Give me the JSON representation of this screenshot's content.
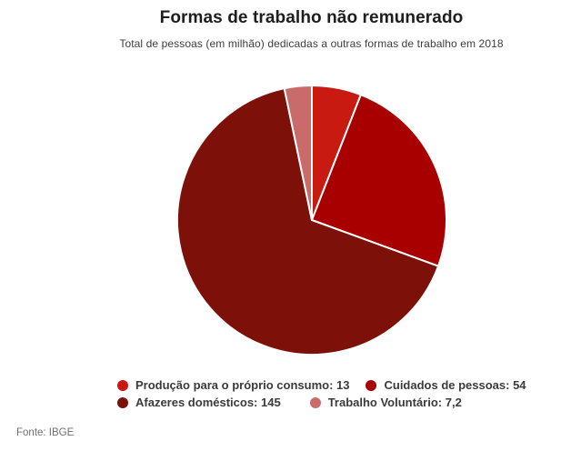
{
  "header": {
    "title": "Formas de trabalho não remunerado",
    "subtitle": "Total de pessoas (em milhão) dedicadas a outras formas de trabalho em 2018"
  },
  "footer": {
    "source": "Fonte: IBGE"
  },
  "chart_data": {
    "type": "pie",
    "title": "Formas de trabalho não remunerado",
    "subtitle": "Total de pessoas (em milhão) dedicadas a outras formas de trabalho em 2018",
    "start_angle_deg": 0,
    "direction": "clockwise",
    "slice_border_color": "#ffffff",
    "legend_position": "bottom",
    "legend_rows": [
      [
        0,
        1
      ],
      [
        2,
        3
      ]
    ],
    "slices": [
      {
        "name": "Produção para o próprio consumo",
        "value": 13,
        "value_label": "13",
        "legend_label": "Produção para o próprio consumo: 13",
        "color": "#c81a10"
      },
      {
        "name": "Cuidados de pessoas",
        "value": 54,
        "value_label": "54",
        "legend_label": "Cuidados de pessoas: 54",
        "color": "#a80000"
      },
      {
        "name": "Afazeres domésticos",
        "value": 145,
        "value_label": "145",
        "legend_label": "Afazeres domésticos: 145",
        "color": "#7d1009"
      },
      {
        "name": "Trabalho Voluntário",
        "value": 7.2,
        "value_label": "7,2",
        "legend_label": "Trabalho Voluntário: 7,2",
        "color": "#c96b6b"
      }
    ]
  }
}
